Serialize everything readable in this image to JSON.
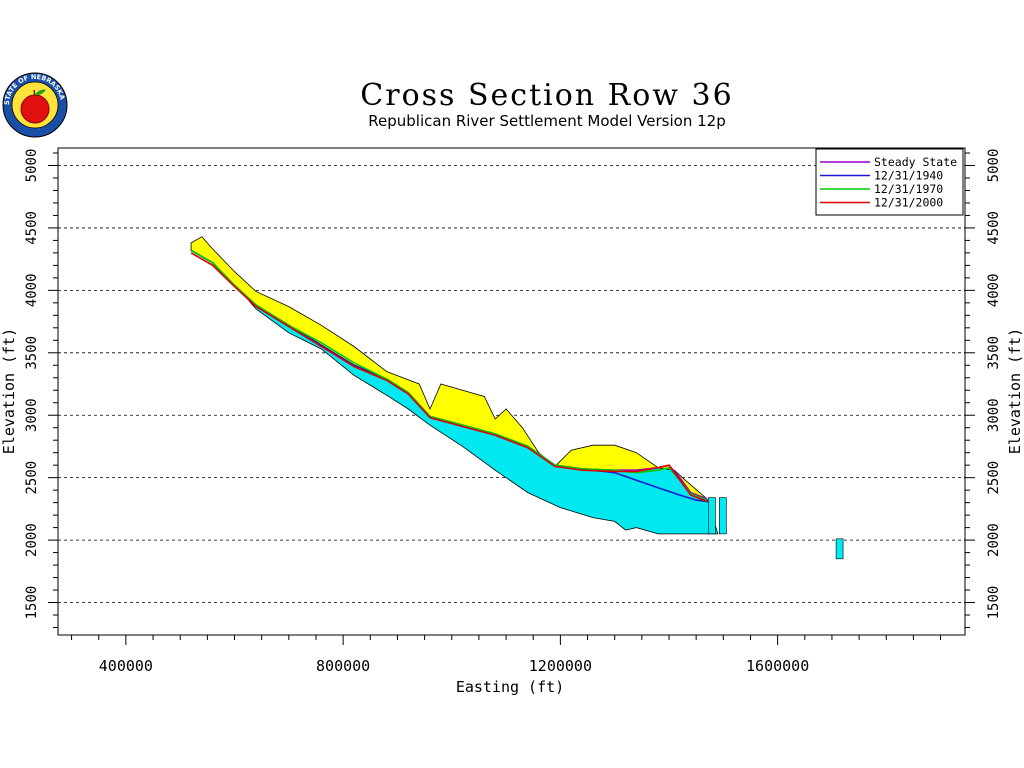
{
  "colors": {
    "steady_state": "#9900cc",
    "y1940": "#1a1ad0",
    "y1970": "#00cc00",
    "y2000": "#e00000",
    "land_surface_fill": "#ffff00",
    "aquifer_fill": "#00e8f0",
    "outline": "#000000",
    "grid": "#000000"
  },
  "logo": {
    "icon": "red-apple-seal-icon",
    "text": "STATE OF NEBRASKA"
  },
  "chart_data": {
    "type": "line",
    "title": "Cross Section Row 36",
    "subtitle": "Republican River Settlement Model Version 12p",
    "xlabel": "Easting (ft)",
    "ylabel": "Elevation (ft)",
    "ylabel_right": "Elevation (ft)",
    "xlim": [
      275000,
      1945000
    ],
    "ylim": [
      1240000,
      5140000
    ],
    "ylim_units": [
      1240,
      5140
    ],
    "x_ticks": [
      400000,
      800000,
      1200000,
      1600000
    ],
    "x_tick_labels": [
      "400000",
      "800000",
      "1200000",
      "1600000"
    ],
    "y_ticks": [
      1500,
      2000,
      2500,
      3000,
      3500,
      4000,
      4500,
      5000
    ],
    "y_tick_labels": [
      "1500",
      "2000",
      "2500",
      "3000",
      "3500",
      "4000",
      "4500",
      "5000"
    ],
    "grid": "horizontal dashed",
    "legend_position": "top-right",
    "legend": [
      "Steady State",
      "12/31/1940",
      "12/31/1970",
      "12/31/2000"
    ],
    "land_surface": {
      "x": [
        520000,
        540000,
        560000,
        600000,
        640000,
        700000,
        760000,
        820000,
        880000,
        940000,
        960000,
        980000,
        1020000,
        1060000,
        1080000,
        1100000,
        1130000,
        1160000,
        1190000,
        1220000,
        1260000,
        1300000,
        1340000,
        1380000,
        1410000,
        1430000
      ],
      "y": [
        4380,
        4430,
        4330,
        4150,
        3990,
        3870,
        3720,
        3550,
        3350,
        3250,
        3050,
        3250,
        3200,
        3150,
        2970,
        3050,
        2900,
        2700,
        2590,
        2720,
        2760,
        2760,
        2700,
        2580,
        2560,
        2480
      ]
    },
    "aquifer_base": {
      "x": [
        520000,
        560000,
        600000,
        640000,
        700000,
        760000,
        820000,
        880000,
        920000,
        960000,
        1020000,
        1080000,
        1140000,
        1200000,
        1260000,
        1300000,
        1320000,
        1340000,
        1380000,
        1440000,
        1490000
      ],
      "y": [
        4330,
        4250,
        4050,
        3850,
        3660,
        3530,
        3320,
        3160,
        3050,
        2920,
        2750,
        2560,
        2380,
        2260,
        2180,
        2150,
        2080,
        2100,
        2050,
        2050,
        2050
      ]
    },
    "series": [
      {
        "name": "Steady State",
        "x": [
          520000,
          560000,
          600000,
          640000,
          700000,
          760000,
          820000,
          880000,
          920000,
          960000,
          1020000,
          1080000,
          1140000,
          1190000,
          1240000,
          1300000,
          1340000,
          1380000,
          1400000,
          1420000,
          1440000,
          1470000
        ],
        "y": [
          4320,
          4220,
          4040,
          3880,
          3720,
          3560,
          3400,
          3290,
          3180,
          2990,
          2920,
          2850,
          2750,
          2600,
          2570,
          2560,
          2560,
          2580,
          2600,
          2500,
          2380,
          2330
        ]
      },
      {
        "name": "12/31/1940",
        "x": [
          520000,
          560000,
          600000,
          640000,
          700000,
          760000,
          820000,
          880000,
          920000,
          960000,
          1020000,
          1080000,
          1140000,
          1190000,
          1240000,
          1300000,
          1340000,
          1380000,
          1420000,
          1450000,
          1470000
        ],
        "y": [
          4320,
          4220,
          4040,
          3880,
          3720,
          3560,
          3400,
          3290,
          3180,
          2990,
          2920,
          2850,
          2750,
          2600,
          2570,
          2540,
          2480,
          2420,
          2360,
          2320,
          2310
        ]
      },
      {
        "name": "12/31/1970",
        "x": [
          520000,
          560000,
          600000,
          640000,
          700000,
          760000,
          820000,
          880000,
          920000,
          960000,
          1020000,
          1080000,
          1140000,
          1190000,
          1240000,
          1300000,
          1340000,
          1380000,
          1400000,
          1420000,
          1440000,
          1470000
        ],
        "y": [
          4320,
          4220,
          4040,
          3880,
          3720,
          3580,
          3420,
          3290,
          3180,
          2990,
          2920,
          2850,
          2750,
          2600,
          2570,
          2560,
          2540,
          2560,
          2580,
          2480,
          2370,
          2320
        ]
      },
      {
        "name": "12/31/2000",
        "x": [
          520000,
          560000,
          600000,
          640000,
          700000,
          760000,
          820000,
          880000,
          920000,
          960000,
          1020000,
          1080000,
          1140000,
          1190000,
          1240000,
          1300000,
          1340000,
          1380000,
          1400000,
          1420000,
          1440000,
          1470000
        ],
        "y": [
          4300,
          4200,
          4030,
          3870,
          3710,
          3550,
          3390,
          3280,
          3170,
          2980,
          2910,
          2840,
          2740,
          2590,
          2560,
          2550,
          2550,
          2580,
          2600,
          2480,
          2360,
          2310
        ]
      }
    ],
    "isolated_columns": [
      {
        "x": 1480000,
        "top": 2340,
        "bottom": 2050
      },
      {
        "x": 1500000,
        "top": 2340,
        "bottom": 2050
      },
      {
        "x": 1715000,
        "top": 2010,
        "bottom": 1850
      }
    ]
  }
}
